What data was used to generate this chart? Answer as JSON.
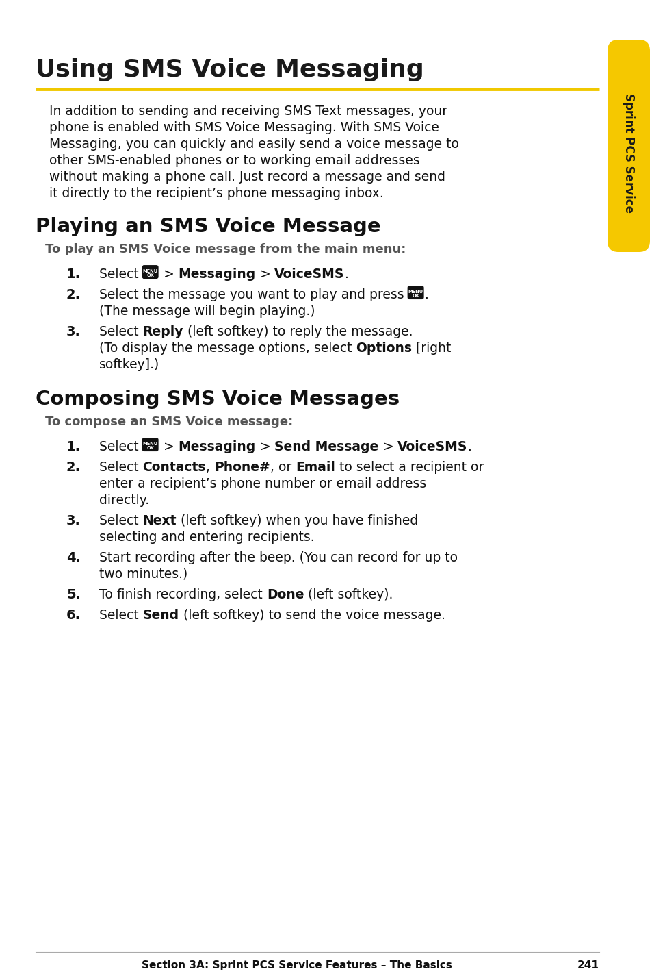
{
  "page_bg": "#ffffff",
  "title": "Using SMS Voice Messaging",
  "title_color": "#1a1a1a",
  "title_line_color": "#f0c800",
  "sidebar_color": "#f5c800",
  "sidebar_text": "Sprint PCS Service",
  "sidebar_text_color": "#1a1a1a",
  "section1_title": "Playing an SMS Voice Message",
  "section1_subtitle": "To play an SMS Voice message from the main menu:",
  "section2_title": "Composing SMS Voice Messages",
  "section2_subtitle": "To compose an SMS Voice message:",
  "footer_text": "Section 3A: Sprint PCS Service Features – The Basics",
  "footer_page": "241",
  "intro_lines": [
    "In addition to sending and receiving SMS Text messages, your",
    "phone is enabled with SMS Voice Messaging. With SMS Voice",
    "Messaging, you can quickly and easily send a voice message to",
    "other SMS-enabled phones or to working email addresses",
    "without making a phone call. Just record a message and send",
    "it directly to the recipient’s phone messaging inbox."
  ],
  "play_items": [
    [
      [
        {
          "text": "Select ",
          "bold": false
        },
        {
          "icon": true
        },
        {
          "text": " > ",
          "bold": false
        },
        {
          "text": "Messaging",
          "bold": true
        },
        {
          "text": " > ",
          "bold": false
        },
        {
          "text": "VoiceSMS",
          "bold": true
        },
        {
          "text": ".",
          "bold": false
        }
      ],
      []
    ],
    [
      [
        {
          "text": "Select the message you want to play and press ",
          "bold": false
        },
        {
          "icon": true
        },
        {
          "text": ".",
          "bold": false
        }
      ],
      [
        "(The message will begin playing.)"
      ]
    ],
    [
      [
        {
          "text": "Select ",
          "bold": false
        },
        {
          "text": "Reply",
          "bold": true
        },
        {
          "text": " (left softkey) to reply the message.",
          "bold": false
        }
      ],
      [
        "(To display the message options, select ",
        "Options",
        " [right",
        "softkey].)"
      ]
    ]
  ],
  "compose_items": [
    [
      [
        {
          "text": "Select ",
          "bold": false
        },
        {
          "icon": true
        },
        {
          "text": " > ",
          "bold": false
        },
        {
          "text": "Messaging",
          "bold": true
        },
        {
          "text": " > ",
          "bold": false
        },
        {
          "text": "Send Message",
          "bold": true
        },
        {
          "text": " > ",
          "bold": false
        },
        {
          "text": "VoiceSMS",
          "bold": true
        },
        {
          "text": ".",
          "bold": false
        }
      ],
      []
    ],
    [
      [
        {
          "text": "Select ",
          "bold": false
        },
        {
          "text": "Contacts",
          "bold": true
        },
        {
          "text": ", ",
          "bold": false
        },
        {
          "text": "Phone#",
          "bold": true
        },
        {
          "text": ", or ",
          "bold": false
        },
        {
          "text": "Email",
          "bold": true
        },
        {
          "text": " to select a recipient or",
          "bold": false
        }
      ],
      [
        "enter a recipient’s phone number or email address",
        "directly."
      ]
    ],
    [
      [
        {
          "text": "Select ",
          "bold": false
        },
        {
          "text": "Next",
          "bold": true
        },
        {
          "text": " (left softkey) when you have finished",
          "bold": false
        }
      ],
      [
        "selecting and entering recipients."
      ]
    ],
    [
      [
        {
          "text": "Start recording after the beep. (You can record for up to",
          "bold": false
        }
      ],
      [
        "two minutes.)"
      ]
    ],
    [
      [
        {
          "text": "To finish recording, select ",
          "bold": false
        },
        {
          "text": "Done",
          "bold": true
        },
        {
          "text": " (left softkey).",
          "bold": false
        }
      ],
      []
    ],
    [
      [
        {
          "text": "Select ",
          "bold": false
        },
        {
          "text": "Send",
          "bold": true
        },
        {
          "text": " (left softkey) to send the voice message.",
          "bold": false
        }
      ],
      []
    ]
  ]
}
